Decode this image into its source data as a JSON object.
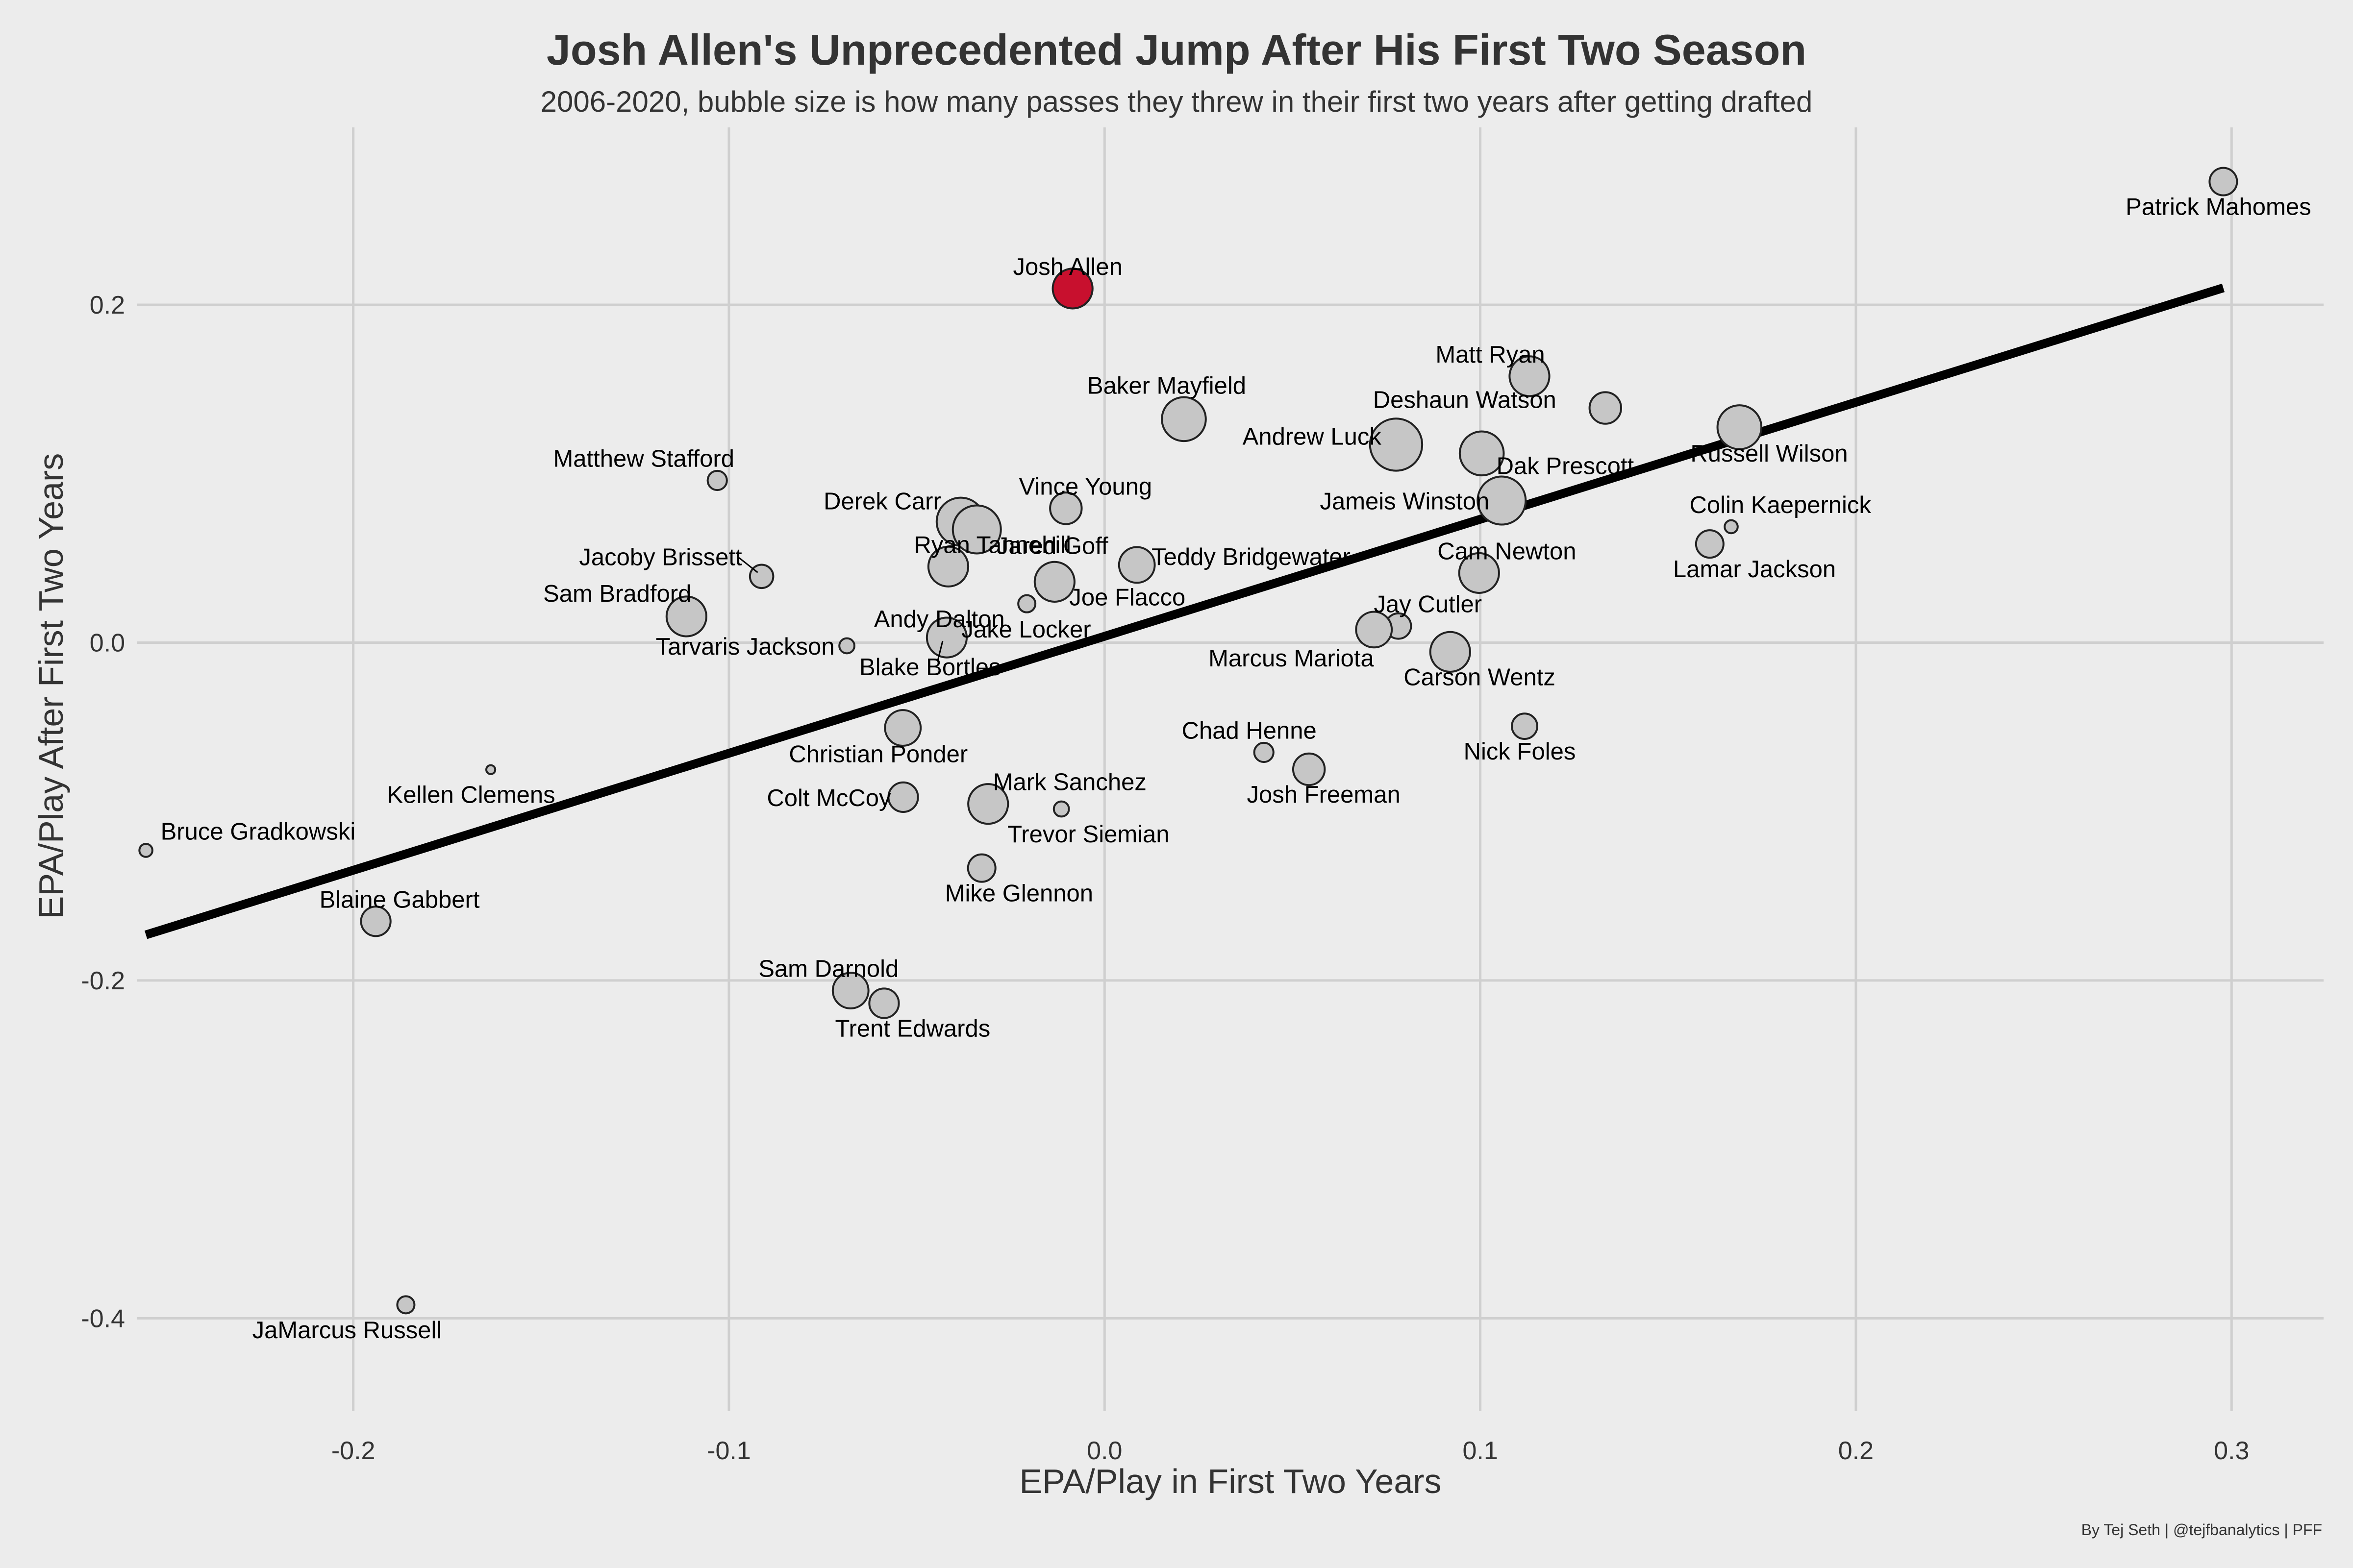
{
  "chart_data": {
    "type": "scatter",
    "title": "Josh Allen's Unprecedented Jump After His First Two Season",
    "subtitle": "2006-2020, bubble size is how many passes they threw in their first two years after getting drafted",
    "xlabel": "EPA/Play in First Two Years",
    "ylabel": "EPA/Play After First Two Years",
    "caption": "By Tej Seth | @tejfbanalytics | PFF",
    "xlim": [
      -0.2575,
      0.3245
    ],
    "ylim": [
      -0.455,
      0.305
    ],
    "xticks": [
      -0.2,
      -0.1,
      0.0,
      0.1,
      0.2,
      0.3
    ],
    "xtick_labels": [
      "-0.2",
      "-0.1",
      "0.0",
      "0.1",
      "0.2",
      "0.3"
    ],
    "yticks": [
      -0.4,
      -0.2,
      0.0,
      0.2
    ],
    "ytick_labels": [
      "-0.4",
      "-0.2",
      "0.0",
      "0.2"
    ],
    "grid": true,
    "trendline": {
      "x": [
        -0.2552,
        0.2978
      ],
      "y": [
        -0.173,
        0.21
      ],
      "color": "#000000"
    },
    "colors": {
      "default": "#c6c6c6",
      "highlight": "#c8102e",
      "edge": "#222222",
      "background": "#ececec",
      "grid": "#cfcfcf"
    },
    "points": [
      {
        "name": "Patrick Mahomes",
        "x": 0.2978,
        "y": 0.2729,
        "size": 1.0,
        "label": "Patrick Mahomes"
      },
      {
        "name": "Josh Allen",
        "x": -0.0085,
        "y": 0.2096,
        "size": 1.6,
        "label": "Josh Allen",
        "highlight": true
      },
      {
        "name": "Matt Ryan",
        "x": 0.1131,
        "y": 0.1577,
        "size": 1.6,
        "label": "Matt Ryan"
      },
      {
        "name": "Deshaun Watson",
        "x": 0.1333,
        "y": 0.1389,
        "size": 1.2,
        "label": "Deshaun Watson"
      },
      {
        "name": "Baker Mayfield",
        "x": 0.0211,
        "y": 0.1323,
        "size": 1.8,
        "label": "Baker Mayfield"
      },
      {
        "name": "Russell Wilson",
        "x": 0.169,
        "y": 0.1275,
        "size": 1.8,
        "label": "Russell Wilson"
      },
      {
        "name": "Andrew Luck",
        "x": 0.0776,
        "y": 0.1172,
        "size": 2.2,
        "label": "Andrew Luck"
      },
      {
        "name": "Dak Prescott",
        "x": 0.1004,
        "y": 0.112,
        "size": 1.8,
        "label": "Dak Prescott"
      },
      {
        "name": "Matthew Stafford",
        "x": -0.1031,
        "y": 0.096,
        "size": 0.6,
        "label": "Matthew Stafford"
      },
      {
        "name": "Jameis Winston",
        "x": 0.1057,
        "y": 0.0841,
        "size": 2.0,
        "label": "Jameis Winston"
      },
      {
        "name": "Vince Young",
        "x": -0.0103,
        "y": 0.0795,
        "size": 1.2,
        "label": "Vince Young"
      },
      {
        "name": "Derek Carr",
        "x": -0.0383,
        "y": 0.0716,
        "size": 2.0,
        "label": "Derek Carr"
      },
      {
        "name": "Jared Goff",
        "x": -0.034,
        "y": 0.067,
        "size": 2.0,
        "label": "Jared Goff"
      },
      {
        "name": "Colin Kaepernick",
        "x": 0.1668,
        "y": 0.0686,
        "size": 0.3,
        "label": "Colin Kaepernick"
      },
      {
        "name": "Lamar Jackson",
        "x": 0.1611,
        "y": 0.0584,
        "size": 1.0,
        "label": "Lamar Jackson"
      },
      {
        "name": "Teddy Bridgewater",
        "x": 0.0086,
        "y": 0.046,
        "size": 1.4,
        "label": "Teddy Bridgewater"
      },
      {
        "name": "Ryan Tannehill",
        "x": -0.0416,
        "y": 0.045,
        "size": 1.6,
        "label": "Ryan Tannehill"
      },
      {
        "name": "Cam Newton",
        "x": 0.0997,
        "y": 0.0412,
        "size": 1.6,
        "label": "Cam Newton"
      },
      {
        "name": "Jacoby Brissett",
        "x": -0.0913,
        "y": 0.0392,
        "size": 0.8,
        "label": "Jacoby Brissett"
      },
      {
        "name": "Joe Flacco",
        "x": -0.0133,
        "y": 0.036,
        "size": 1.6,
        "label": "Joe Flacco"
      },
      {
        "name": "Andy Dalton",
        "x": -0.0207,
        "y": 0.023,
        "size": 0.5,
        "label": "Andy Dalton"
      },
      {
        "name": "Sam Bradford",
        "x": -0.1113,
        "y": 0.0155,
        "size": 1.6,
        "label": "Sam Bradford"
      },
      {
        "name": "Jay Cutler",
        "x": 0.0782,
        "y": 0.0098,
        "size": 0.9,
        "label": "Jay Cutler"
      },
      {
        "name": "Marcus Mariota",
        "x": 0.0717,
        "y": 0.0077,
        "size": 1.4,
        "label": "Marcus Mariota"
      },
      {
        "name": "Jake Locker",
        "x": -0.042,
        "y": 0.003,
        "size": 1.6,
        "label": "Jake Locker"
      },
      {
        "name": "Tarvaris Jackson",
        "x": -0.0686,
        "y": -0.0019,
        "size": 0.4,
        "label": "Tarvaris Jackson"
      },
      {
        "name": "Blake Bortles",
        "x": -0.0431,
        "y": 0.001,
        "size": 0.0,
        "label": "Blake Bortles"
      },
      {
        "name": "Carson Wentz",
        "x": 0.092,
        "y": -0.0055,
        "size": 1.6,
        "label": "Carson Wentz"
      },
      {
        "name": "Christian Ponder",
        "x": -0.0537,
        "y": -0.0505,
        "size": 1.4,
        "label": "Christian Ponder"
      },
      {
        "name": "Nick Foles",
        "x": 0.1118,
        "y": -0.0495,
        "size": 0.9,
        "label": "Nick Foles"
      },
      {
        "name": "Chad Henne",
        "x": 0.0424,
        "y": -0.065,
        "size": 0.6,
        "label": "Chad Henne"
      },
      {
        "name": "Josh Freeman",
        "x": 0.0544,
        "y": -0.075,
        "size": 1.2,
        "label": "Josh Freeman"
      },
      {
        "name": "Kellen Clemens",
        "x": -0.1634,
        "y": -0.0752,
        "size": 0.1,
        "label": "Kellen Clemens"
      },
      {
        "name": "Colt McCoy",
        "x": -0.0536,
        "y": -0.0915,
        "size": 1.1,
        "label": "Colt McCoy"
      },
      {
        "name": "Mark Sanchez",
        "x": -0.031,
        "y": -0.0955,
        "size": 1.6,
        "label": "Mark Sanchez"
      },
      {
        "name": "Trevor Siemian",
        "x": -0.0115,
        "y": -0.0985,
        "size": 0.4,
        "label": "Trevor Siemian"
      },
      {
        "name": "Bruce Gradkowski",
        "x": -0.2552,
        "y": -0.123,
        "size": 0.3,
        "label": "Bruce Gradkowski"
      },
      {
        "name": "Mike Glennon",
        "x": -0.0327,
        "y": -0.1335,
        "size": 1.0,
        "label": "Mike Glennon"
      },
      {
        "name": "Blaine Gabbert",
        "x": -0.194,
        "y": -0.165,
        "size": 1.1,
        "label": "Blaine Gabbert"
      },
      {
        "name": "Sam Darnold",
        "x": -0.0676,
        "y": -0.206,
        "size": 1.4,
        "label": "Sam Darnold"
      },
      {
        "name": "Trent Edwards",
        "x": -0.0587,
        "y": -0.2135,
        "size": 1.1,
        "label": "Trent Edwards"
      },
      {
        "name": "JaMarcus Russell",
        "x": -0.186,
        "y": -0.392,
        "size": 0.5,
        "label": "JaMarcus Russell"
      }
    ]
  }
}
